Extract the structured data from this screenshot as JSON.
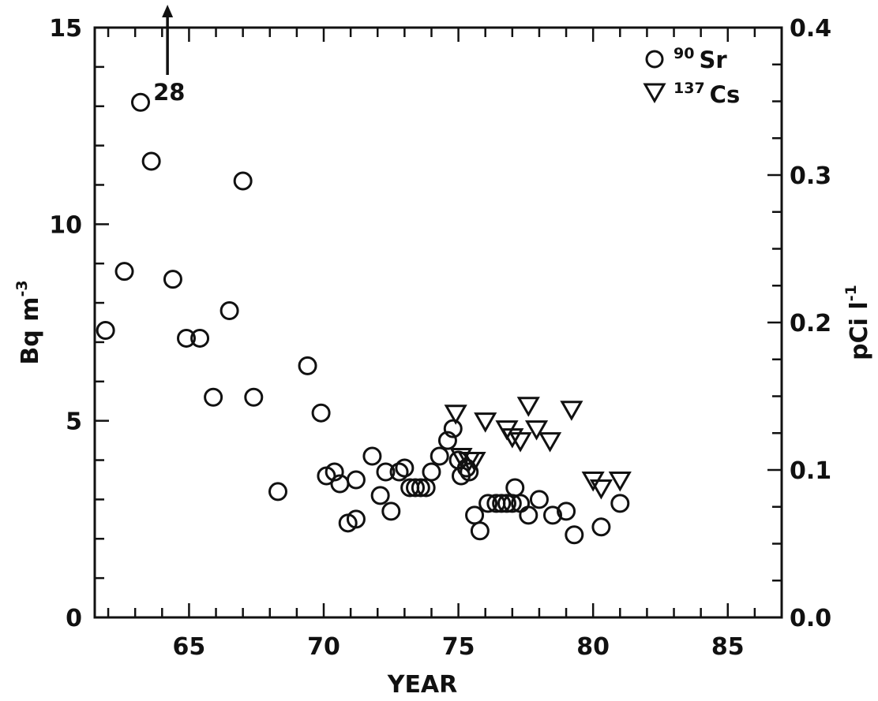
{
  "chart_data": {
    "type": "scatter",
    "title": "",
    "xlabel": "YEAR",
    "ylabel_left": "Bq m",
    "ylabel_left_exp": "-3",
    "ylabel_right": "pCi l",
    "ylabel_right_exp": "-1",
    "xlim": [
      61.5,
      87
    ],
    "ylim_left": [
      0,
      15
    ],
    "ylim_right": [
      0.0,
      0.4
    ],
    "x_ticks": [
      "65",
      "70",
      "75",
      "80",
      "85"
    ],
    "y_ticks_left": [
      "0",
      "5",
      "10",
      "15"
    ],
    "y_ticks_right": [
      "0.0",
      "0.1",
      "0.2",
      "0.3",
      "0.4"
    ],
    "grid": false,
    "legend_position": "top-right",
    "annotation": {
      "text": "28",
      "x": 64.2,
      "y": 15,
      "note_value": 28
    },
    "series": [
      {
        "name": "Sr",
        "isotope_mass": "90",
        "marker": "circle",
        "points": [
          [
            61.9,
            7.3
          ],
          [
            62.6,
            8.8
          ],
          [
            63.2,
            13.1
          ],
          [
            63.6,
            11.6
          ],
          [
            64.4,
            8.6
          ],
          [
            64.9,
            7.1
          ],
          [
            65.4,
            7.1
          ],
          [
            65.9,
            5.6
          ],
          [
            66.5,
            7.8
          ],
          [
            67.0,
            11.1
          ],
          [
            67.4,
            5.6
          ],
          [
            68.3,
            3.2
          ],
          [
            69.4,
            6.4
          ],
          [
            69.9,
            5.2
          ],
          [
            70.1,
            3.6
          ],
          [
            70.4,
            3.7
          ],
          [
            70.6,
            3.4
          ],
          [
            70.9,
            2.4
          ],
          [
            71.2,
            2.5
          ],
          [
            71.2,
            3.5
          ],
          [
            71.8,
            4.1
          ],
          [
            72.1,
            3.1
          ],
          [
            72.3,
            3.7
          ],
          [
            72.5,
            2.7
          ],
          [
            72.8,
            3.7
          ],
          [
            73.0,
            3.8
          ],
          [
            73.2,
            3.3
          ],
          [
            73.4,
            3.3
          ],
          [
            73.6,
            3.3
          ],
          [
            73.8,
            3.3
          ],
          [
            74.0,
            3.7
          ],
          [
            74.3,
            4.1
          ],
          [
            74.6,
            4.5
          ],
          [
            74.8,
            4.8
          ],
          [
            75.0,
            4.0
          ],
          [
            75.1,
            3.6
          ],
          [
            75.3,
            3.8
          ],
          [
            75.4,
            3.7
          ],
          [
            75.6,
            2.6
          ],
          [
            75.8,
            2.2
          ],
          [
            76.1,
            2.9
          ],
          [
            76.4,
            2.9
          ],
          [
            76.6,
            2.9
          ],
          [
            76.8,
            2.9
          ],
          [
            77.0,
            2.9
          ],
          [
            77.1,
            3.3
          ],
          [
            77.3,
            2.9
          ],
          [
            77.6,
            2.6
          ],
          [
            78.0,
            3.0
          ],
          [
            78.5,
            2.6
          ],
          [
            79.0,
            2.7
          ],
          [
            79.3,
            2.1
          ],
          [
            80.3,
            2.3
          ],
          [
            81.0,
            2.9
          ]
        ]
      },
      {
        "name": "Cs",
        "isotope_mass": "137",
        "marker": "triangle-down",
        "points": [
          [
            74.9,
            5.2
          ],
          [
            75.1,
            4.1
          ],
          [
            75.4,
            4.0
          ],
          [
            75.6,
            4.0
          ],
          [
            76.0,
            5.0
          ],
          [
            76.8,
            4.8
          ],
          [
            77.0,
            4.6
          ],
          [
            77.3,
            4.5
          ],
          [
            77.6,
            5.4
          ],
          [
            77.9,
            4.8
          ],
          [
            78.4,
            4.5
          ],
          [
            79.2,
            5.3
          ],
          [
            80.0,
            3.5
          ],
          [
            80.3,
            3.3
          ],
          [
            81.0,
            3.5
          ]
        ]
      }
    ]
  }
}
